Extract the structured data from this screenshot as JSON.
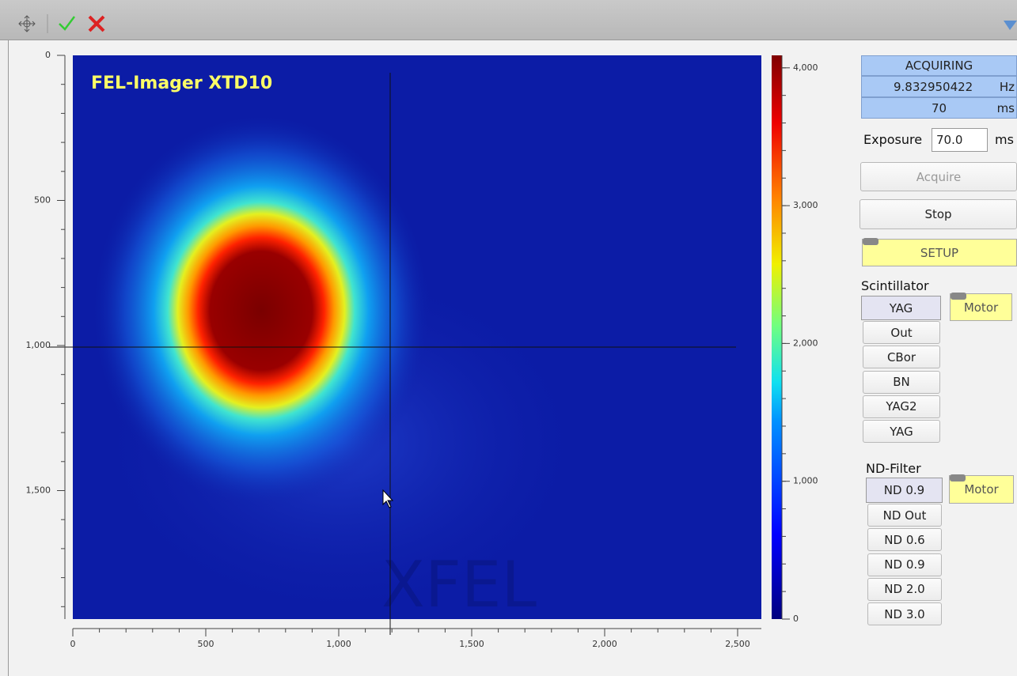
{
  "image_view": {
    "title": "FEL-Imager XTD10",
    "watermark": "XFEL",
    "y_axis_ticks": [
      "0",
      "500",
      "1,000",
      "1,500"
    ],
    "x_axis_ticks": [
      "0",
      "500",
      "1,000",
      "1,500",
      "2,000",
      "2,500"
    ],
    "colorbar_ticks": [
      "0",
      "1,000",
      "2,000",
      "3,000",
      "4,000"
    ]
  },
  "status": {
    "state": "ACQUIRING",
    "rate": "9.832950422",
    "rate_unit": "Hz",
    "exposure_readback": "70",
    "exposure_unit": "ms"
  },
  "exposure": {
    "label": "Exposure",
    "value": "70.0",
    "unit": "ms"
  },
  "buttons": {
    "acquire": "Acquire",
    "stop": "Stop",
    "setup": "SETUP"
  },
  "scintillator": {
    "label": "Scintillator",
    "current": "YAG",
    "motor": "Motor",
    "options": [
      "Out",
      "CBor",
      "BN",
      "YAG2",
      "YAG"
    ]
  },
  "nd_filter": {
    "label": "ND-Filter",
    "current": "ND 0.9",
    "motor": "Motor",
    "options": [
      "ND Out",
      "ND 0.6",
      "ND 0.9",
      "ND 2.0",
      "ND 3.0"
    ]
  }
}
